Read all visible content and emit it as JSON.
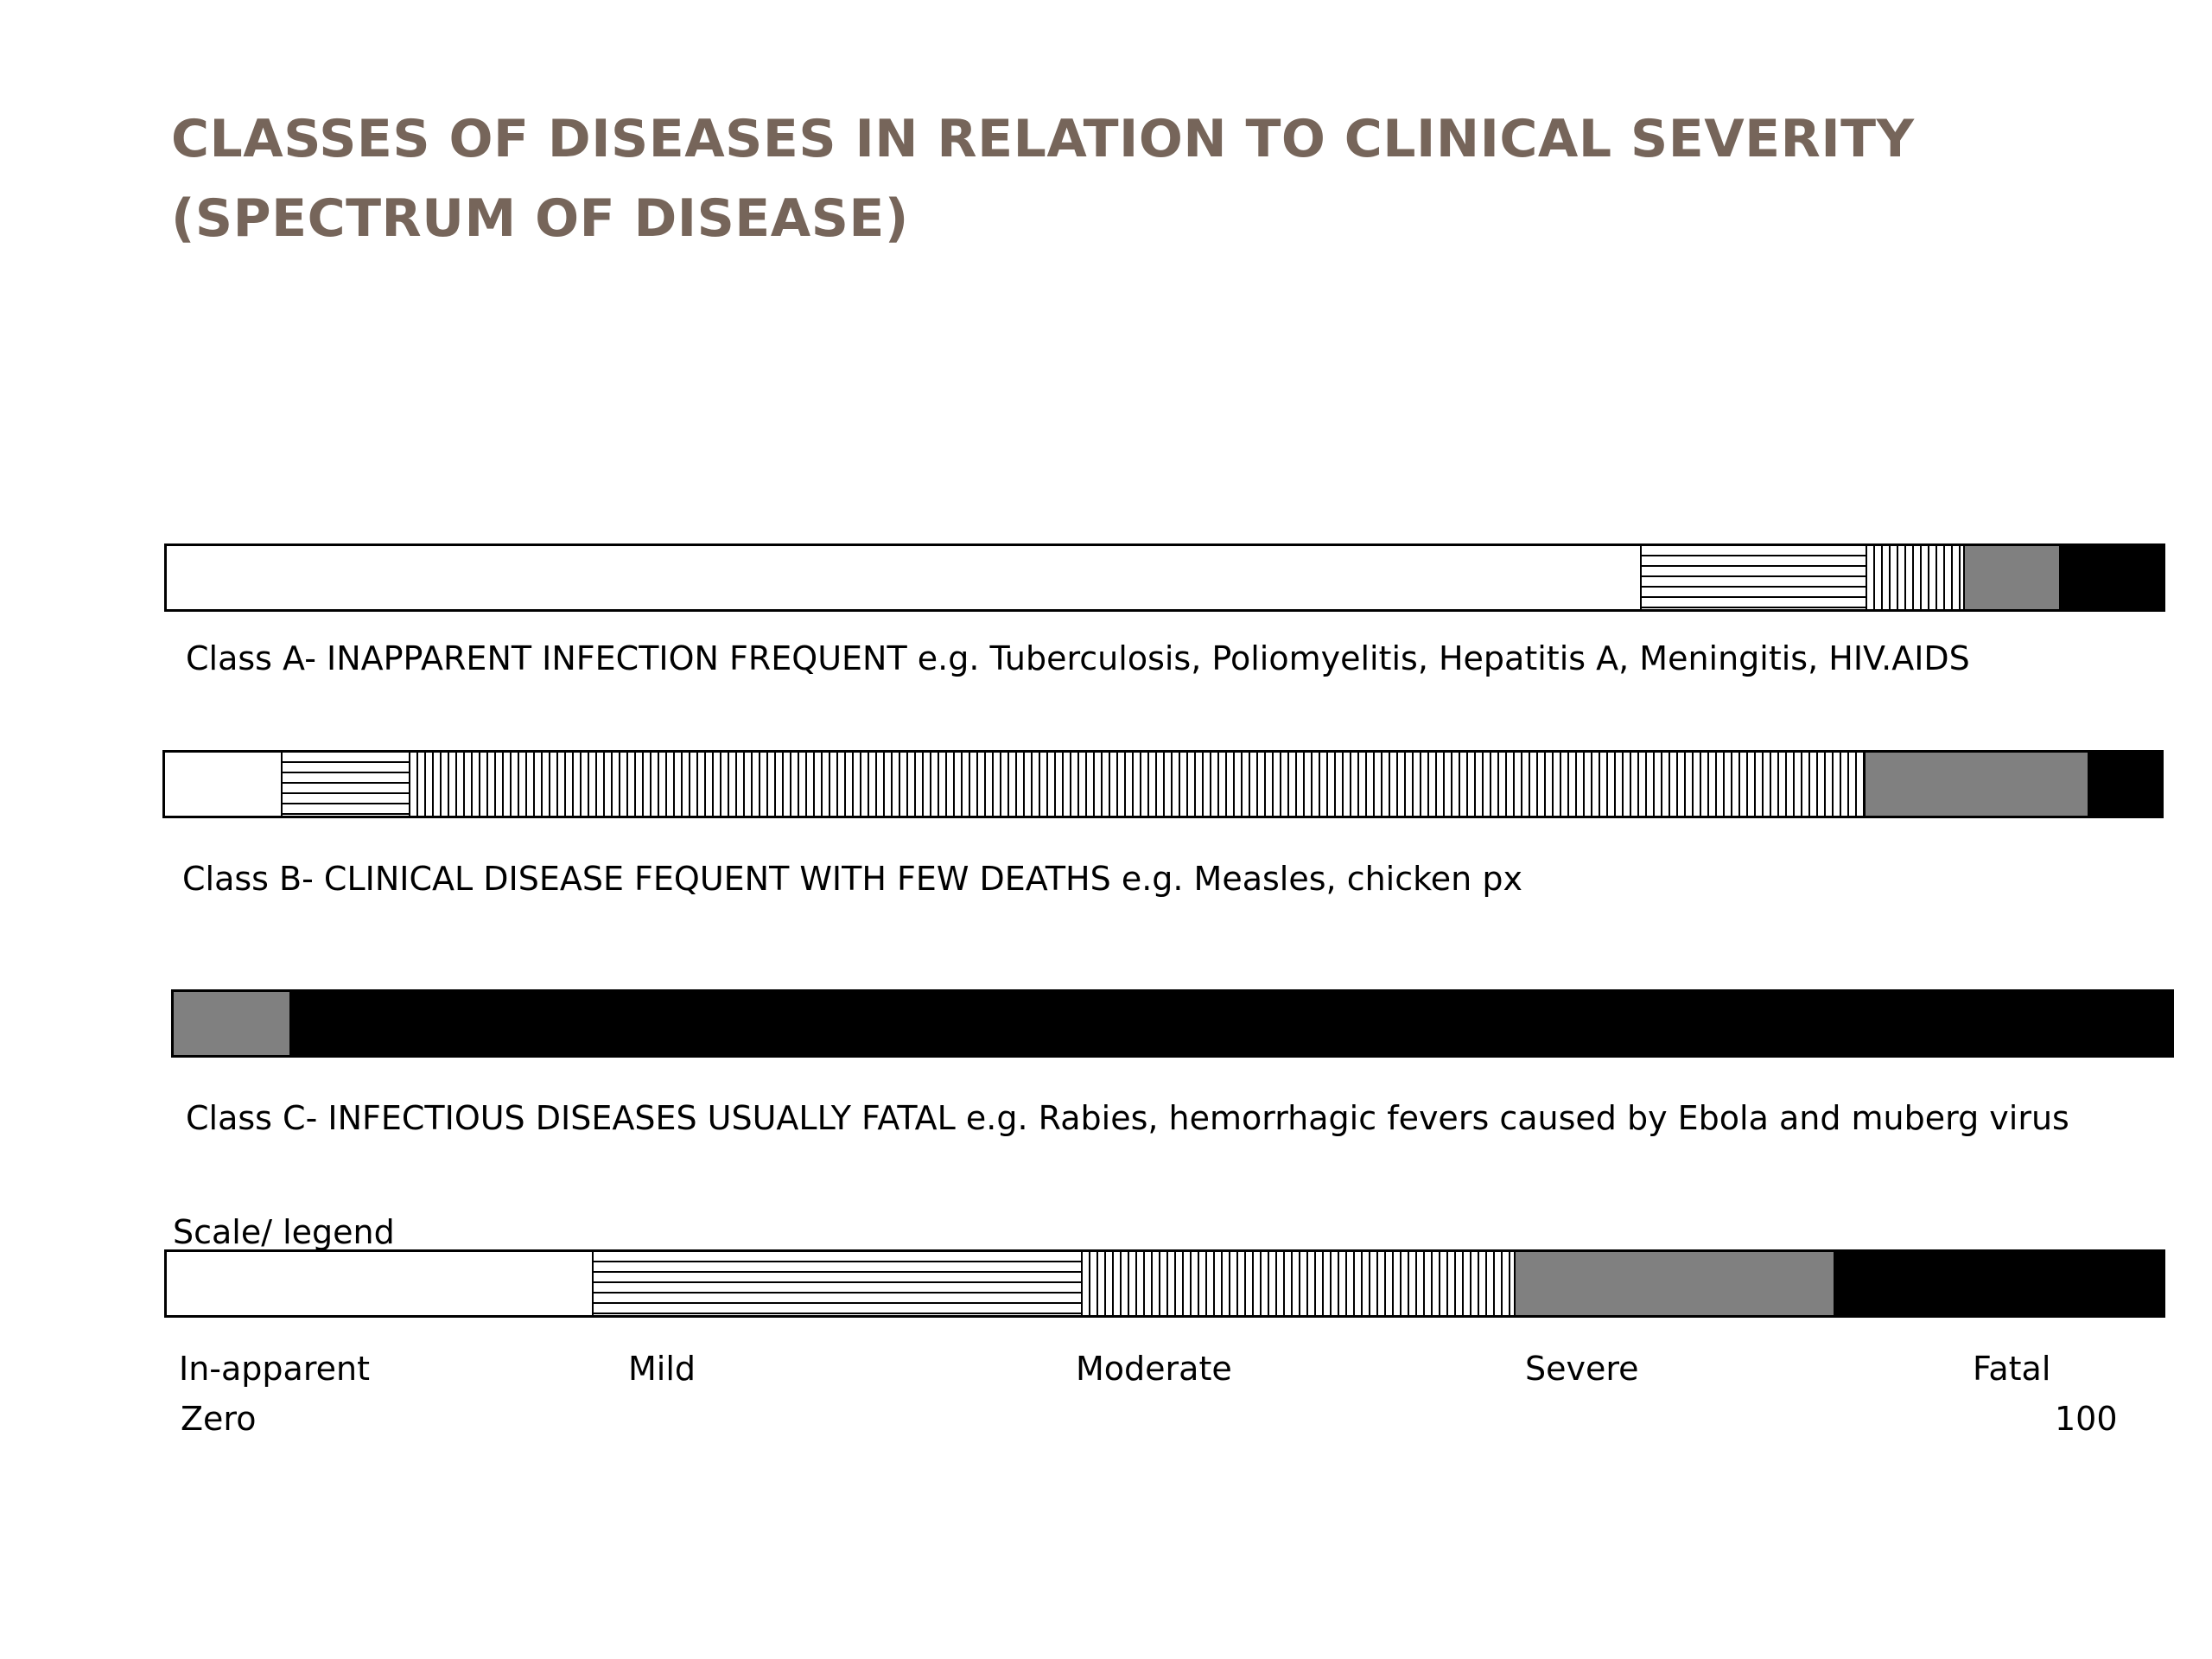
{
  "title": {
    "line1": "CLASSES OF DISEASES IN RELATION TO CLINICAL SEVERITY",
    "line2": "(SPECTRUM OF DISEASE)"
  },
  "severity_levels": [
    "In-apparent",
    "Mild",
    "Moderate",
    "Severe",
    "Fatal"
  ],
  "classes": [
    {
      "caption": "Class A- INAPPARENT INFECTION FREQUENT e.g. Tuberculosis, Poliomyelitis, Hepatitis A, Meningitis, HIV.AIDS",
      "segments": [
        {
          "level": "In-apparent",
          "share": 73.8
        },
        {
          "level": "Mild",
          "share": 11.3
        },
        {
          "level": "Moderate",
          "share": 4.9
        },
        {
          "level": "Severe",
          "share": 4.8
        },
        {
          "level": "Fatal",
          "share": 5.2
        }
      ]
    },
    {
      "caption": "Class B- CLINICAL DISEASE FEQUENT WITH FEW DEATHS e.g. Measles, chicken px",
      "segments": [
        {
          "level": "In-apparent",
          "share": 5.8
        },
        {
          "level": "Mild",
          "share": 6.4
        },
        {
          "level": "Moderate",
          "share": 72.9
        },
        {
          "level": "Severe",
          "share": 11.2
        },
        {
          "level": "Fatal",
          "share": 3.7
        }
      ]
    },
    {
      "caption": "Class C- INFECTIOUS DISEASES USUALLY FATAL e.g. Rabies, hemorrhagic fevers caused by Ebola and muberg virus",
      "segments": [
        {
          "level": "Severe",
          "share": 5.8
        },
        {
          "level": "Fatal",
          "share": 94.2
        }
      ]
    }
  ],
  "legend": {
    "title": "Scale/ legend",
    "segments": [
      {
        "level": "In-apparent",
        "share": 21.3
      },
      {
        "level": "Mild",
        "share": 24.5
      },
      {
        "level": "Moderate",
        "share": 21.7
      },
      {
        "level": "Severe",
        "share": 16.0
      },
      {
        "level": "Fatal",
        "share": 16.5
      }
    ],
    "labels": [
      "In-apparent",
      "Mild",
      "Moderate",
      "Severe",
      "Fatal"
    ],
    "scale_min": "Zero",
    "scale_max": "100"
  }
}
